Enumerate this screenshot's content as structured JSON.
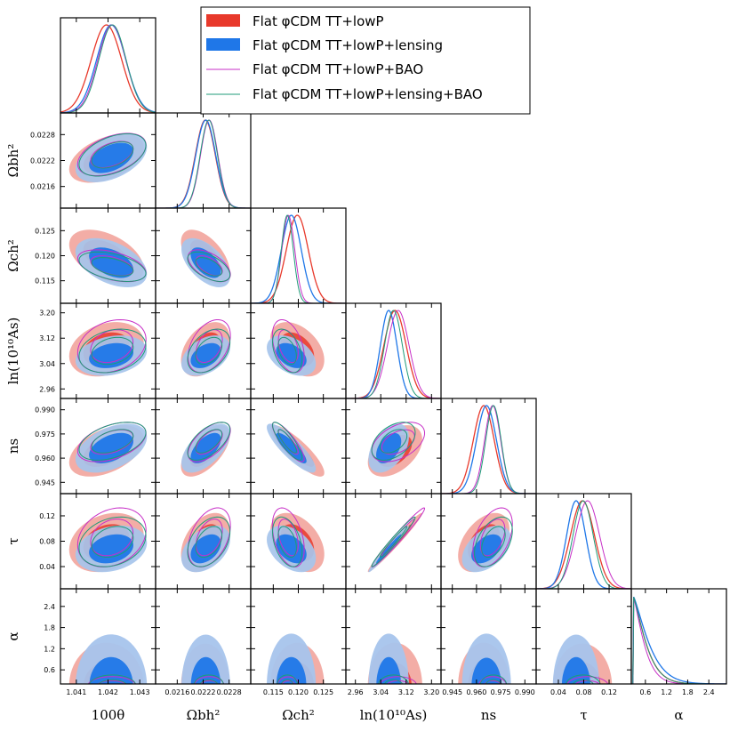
{
  "chart_data": {
    "type": "triangle-plot",
    "parameters": [
      {
        "key": "theta",
        "label": "100θ",
        "range": [
          1.0405,
          1.0435
        ],
        "ticks": [
          "1.041",
          "1.042",
          "1.043"
        ]
      },
      {
        "key": "ombh2",
        "label": "Ωbh²",
        "range": [
          0.0211,
          0.0233
        ],
        "ticks": [
          "0.0216",
          "0.0222",
          "0.0228"
        ]
      },
      {
        "key": "omch2",
        "label": "Ωch²",
        "range": [
          0.1105,
          0.1295
        ],
        "ticks": [
          "0.115",
          "0.120",
          "0.125"
        ]
      },
      {
        "key": "lnAs",
        "label": "ln(10¹⁰As)",
        "range": [
          2.93,
          3.23
        ],
        "ticks": [
          "2.96",
          "3.04",
          "3.12",
          "3.20"
        ]
      },
      {
        "key": "ns",
        "label": "ns",
        "range": [
          0.938,
          0.997
        ],
        "ticks": [
          "0.945",
          "0.960",
          "0.975",
          "0.990"
        ]
      },
      {
        "key": "tau",
        "label": "τ",
        "range": [
          0.005,
          0.155
        ],
        "ticks": [
          "0.04",
          "0.08",
          "0.12"
        ]
      },
      {
        "key": "alpha",
        "label": "α",
        "range": [
          0.2,
          2.9
        ],
        "ticks": [
          "0.6",
          "1.2",
          "1.8",
          "2.4"
        ]
      }
    ],
    "series": [
      {
        "name": "Flat φCDM TT+lowP",
        "color": "#e8392b",
        "style": "filled",
        "mean": [
          1.04195,
          0.02225,
          0.1198,
          3.085,
          0.9645,
          0.078
        ],
        "sd": [
          0.00048,
          0.00023,
          0.0022,
          0.035,
          0.0065,
          0.019
        ]
      },
      {
        "name": "Flat φCDM TT+lowP+lensing",
        "color": "#1f77e8",
        "style": "filled",
        "mean": [
          1.0421,
          0.02226,
          0.1186,
          3.065,
          0.9662,
          0.068
        ],
        "sd": [
          0.00046,
          0.00023,
          0.002,
          0.026,
          0.0062,
          0.015
        ]
      },
      {
        "name": "Flat φCDM TT+lowP+BAO",
        "color": "#c72fc7",
        "style": "line",
        "mean": [
          1.04212,
          0.02234,
          0.118,
          3.095,
          0.97,
          0.086
        ],
        "sd": [
          0.00044,
          0.0002,
          0.0013,
          0.034,
          0.005,
          0.019
        ]
      },
      {
        "name": "Flat φCDM TT+lowP+lensing+BAO",
        "color": "#1f9b78",
        "style": "line",
        "mean": [
          1.04214,
          0.02233,
          0.1178,
          3.08,
          0.9705,
          0.079
        ],
        "sd": [
          0.00043,
          0.0002,
          0.0012,
          0.028,
          0.0048,
          0.016
        ]
      }
    ],
    "correlations": {
      "0-1": 0.45,
      "0-2": -0.45,
      "0-3": 0.25,
      "0-4": 0.45,
      "0-5": 0.25,
      "1-2": -0.55,
      "1-3": 0.4,
      "1-4": 0.6,
      "1-5": 0.4,
      "2-3": -0.4,
      "2-4": -0.85,
      "2-5": -0.4,
      "3-4": 0.45,
      "3-5": 0.98,
      "4-5": 0.45
    },
    "alpha_peak": 0.25,
    "alpha_scale": [
      0.45,
      0.55,
      0.38,
      0.45
    ]
  },
  "legend": {
    "entries": [
      "Flat φCDM TT+lowP",
      "Flat φCDM TT+lowP+lensing",
      "Flat φCDM TT+lowP+BAO",
      "Flat φCDM TT+lowP+lensing+BAO"
    ]
  }
}
